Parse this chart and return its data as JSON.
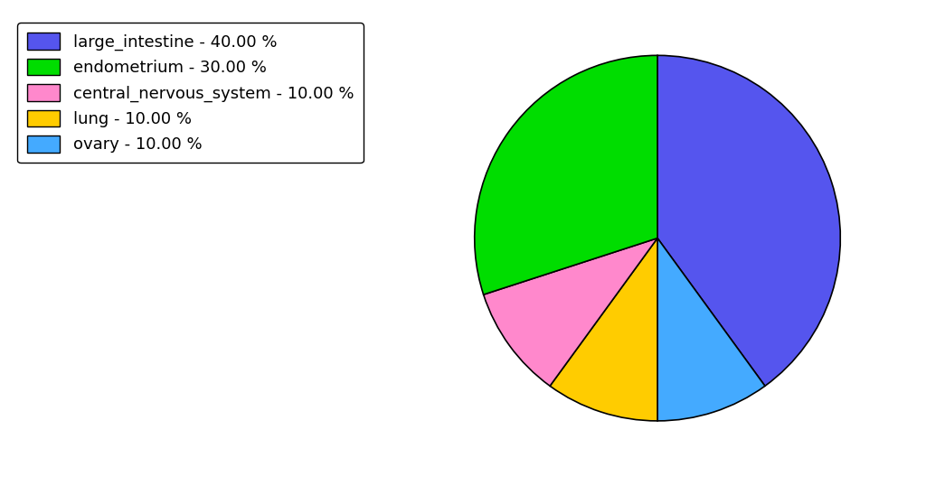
{
  "labels": [
    "large_intestine",
    "ovary",
    "lung",
    "central_nervous_system",
    "endometrium"
  ],
  "values": [
    40.0,
    10.0,
    10.0,
    10.0,
    30.0
  ],
  "colors": [
    "#5555ee",
    "#44aaff",
    "#ffcc00",
    "#ff88cc",
    "#00dd00"
  ],
  "legend_labels": [
    "large_intestine - 40.00 %",
    "endometrium - 30.00 %",
    "central_nervous_system - 10.00 %",
    "lung - 10.00 %",
    "ovary - 10.00 %"
  ],
  "legend_colors": [
    "#5555ee",
    "#00dd00",
    "#ff88cc",
    "#ffcc00",
    "#44aaff"
  ],
  "startangle": 90,
  "background_color": "#ffffff",
  "legend_fontsize": 13,
  "pie_aspect": 0.75
}
